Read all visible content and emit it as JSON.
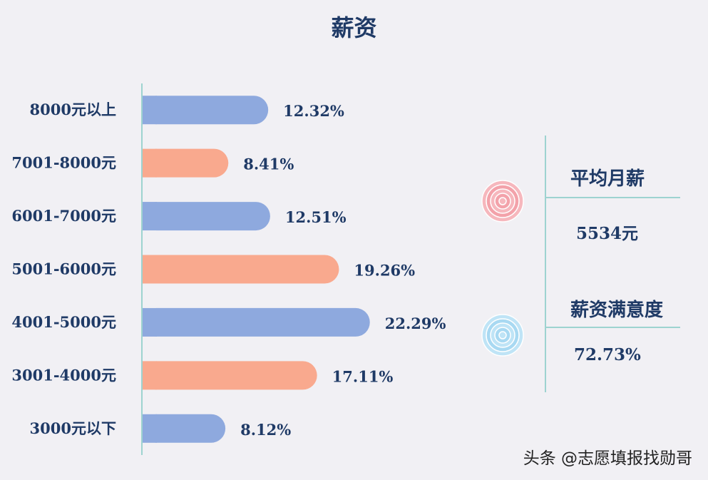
{
  "colors": {
    "blue": "#8ea9de",
    "salmon": "#f9a98e",
    "text": "#1f3a66",
    "axis": "#9dd3d0"
  },
  "chart_data": {
    "type": "bar",
    "orientation": "horizontal",
    "title": "薪资",
    "categories": [
      "8000元以上",
      "7001-8000元",
      "6001-7000元",
      "5001-6000元",
      "4001-5000元",
      "3001-4000元",
      "3000元以下"
    ],
    "values": [
      12.32,
      8.41,
      12.51,
      19.26,
      22.29,
      17.11,
      8.12
    ],
    "value_labels": [
      "12.32%",
      "8.41%",
      "12.51%",
      "19.26%",
      "22.29%",
      "17.11%",
      "8.12%"
    ],
    "bar_colors": [
      "#8ea9de",
      "#f9a98e",
      "#8ea9de",
      "#f9a98e",
      "#8ea9de",
      "#f9a98e",
      "#8ea9de"
    ],
    "xlim": [
      0,
      25
    ],
    "grid": false,
    "legend": false
  },
  "stats": {
    "avg_salary_title": "平均月薪",
    "avg_salary_value": "5534元",
    "satisfaction_title": "薪资满意度",
    "satisfaction_value": "72.73%",
    "flower_top_icon": "rose-pink-icon",
    "flower_bottom_icon": "rose-blue-icon"
  },
  "watermark": "头条 @志愿填报找勋哥"
}
